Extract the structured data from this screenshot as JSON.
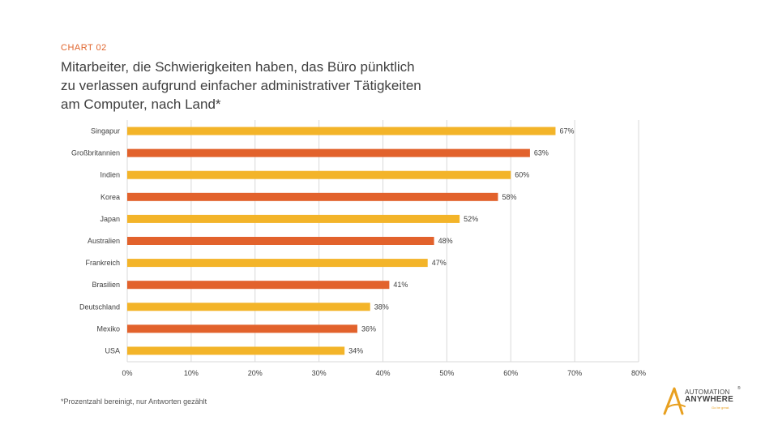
{
  "header": {
    "eyebrow": "CHART 02",
    "title_lines": [
      "Mitarbeiter, die Schwierigkeiten haben, das Büro pünktlich",
      "zu verlassen aufgrund einfacher administrativer Tätigkeiten",
      "am Computer, nach Land*"
    ]
  },
  "footnote": "*Prozentzahl bereinigt, nur Antworten gezählt",
  "logo": {
    "line1": "AUTOMATION",
    "line2": "ANYWHERE",
    "tagline": "Go be great.",
    "reg": "®"
  },
  "colors": {
    "yellow": "#f3b429",
    "orange": "#e2622c",
    "grid": "#d9d9d9",
    "text": "#404040"
  },
  "chart_data": {
    "type": "bar",
    "orientation": "horizontal",
    "categories": [
      "Singapur",
      "Großbritannien",
      "Indien",
      "Korea",
      "Japan",
      "Australien",
      "Frankreich",
      "Brasilien",
      "Deutschland",
      "Mexiko",
      "USA"
    ],
    "values": [
      67,
      63,
      60,
      58,
      52,
      48,
      47,
      41,
      38,
      36,
      34
    ],
    "value_labels": [
      "67%",
      "63%",
      "60%",
      "58%",
      "52%",
      "48%",
      "47%",
      "41%",
      "38%",
      "36%",
      "34%"
    ],
    "bar_colors": [
      "yellow",
      "orange",
      "yellow",
      "orange",
      "yellow",
      "orange",
      "yellow",
      "orange",
      "yellow",
      "orange",
      "yellow"
    ],
    "x_ticks": [
      0,
      10,
      20,
      30,
      40,
      50,
      60,
      70,
      80
    ],
    "x_tick_labels": [
      "0%",
      "10%",
      "20%",
      "30%",
      "40%",
      "50%",
      "60%",
      "70%",
      "80%"
    ],
    "xlim": [
      0,
      80
    ],
    "grid": true
  }
}
